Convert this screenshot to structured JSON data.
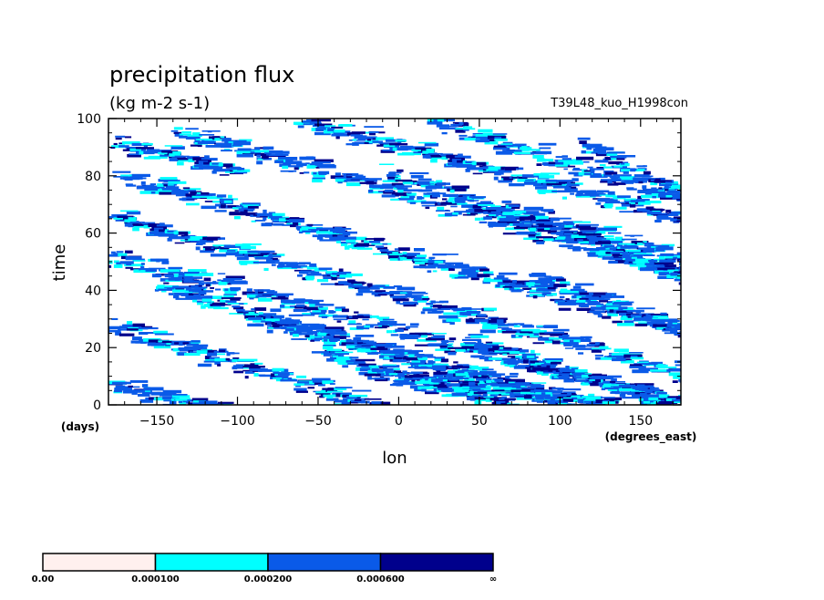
{
  "chart_data": {
    "type": "heatmap",
    "title": "precipitation flux",
    "subtitle": "(kg m-2 s-1)",
    "run_label": "T39L48_kuo_H1998con",
    "xlabel": "lon",
    "x_units": "(degrees_east)",
    "ylabel": "time",
    "y_units": "(days)",
    "xlim": [
      -180,
      175
    ],
    "ylim": [
      0,
      100
    ],
    "x_ticks": [
      -150,
      -100,
      -50,
      0,
      50,
      100,
      150
    ],
    "x_tick_labels": [
      "−150",
      "−100",
      "−50",
      "0",
      "50",
      "100",
      "150"
    ],
    "y_ticks": [
      0,
      20,
      40,
      60,
      80,
      100
    ],
    "y_tick_labels": [
      "0",
      "20",
      "40",
      "60",
      "80",
      "100"
    ],
    "colorbar": {
      "boundaries": [
        "0.00",
        "0.000100",
        "0.000200",
        "0.000600",
        "∞"
      ],
      "colors": [
        "#fff0ee",
        "#00ffff",
        "#0a5ae8",
        "#00008c"
      ]
    },
    "bands": [
      {
        "lon": -180,
        "time": 8,
        "dlon": 270,
        "dtime": 40
      },
      {
        "lon": -180,
        "time": 28,
        "dlon": 380,
        "dtime": 65
      },
      {
        "lon": -180,
        "time": 52,
        "dlon": 430,
        "dtime": 62
      },
      {
        "lon": -180,
        "time": 66,
        "dlon": 400,
        "dtime": 62
      },
      {
        "lon": -175,
        "time": 80,
        "dlon": 400,
        "dtime": 62
      },
      {
        "lon": -140,
        "time": 96,
        "dlon": 380,
        "dtime": 60
      },
      {
        "lon": -60,
        "time": 99,
        "dlon": 350,
        "dtime": 50
      },
      {
        "lon": 20,
        "time": 99,
        "dlon": 230,
        "dtime": 40
      },
      {
        "lon": -150,
        "time": 42,
        "dlon": 330,
        "dtime": 55
      },
      {
        "lon": -90,
        "time": 30,
        "dlon": 320,
        "dtime": 45
      },
      {
        "lon": -50,
        "time": 18,
        "dlon": 260,
        "dtime": 40
      },
      {
        "lon": -20,
        "time": 12,
        "dlon": 250,
        "dtime": 20
      },
      {
        "lon": 40,
        "time": 22,
        "dlon": 180,
        "dtime": 30
      },
      {
        "lon": 80,
        "time": 45,
        "dlon": 130,
        "dtime": 25
      },
      {
        "lon": 60,
        "time": 70,
        "dlon": 180,
        "dtime": 30
      },
      {
        "lon": 110,
        "time": 92,
        "dlon": 100,
        "dtime": 30
      },
      {
        "lon": -10,
        "time": 82,
        "dlon": 200,
        "dtime": 40
      },
      {
        "lon": -180,
        "time": 92,
        "dlon": 80,
        "dtime": 10
      }
    ]
  }
}
